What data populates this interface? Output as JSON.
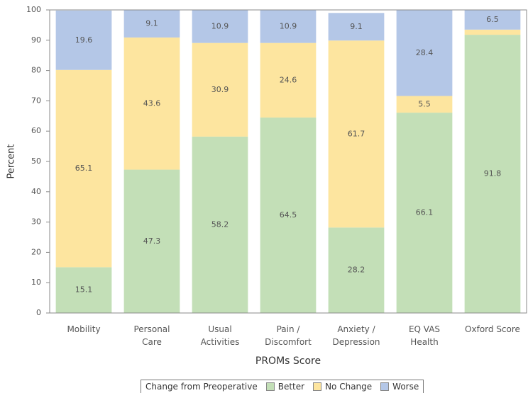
{
  "chart_data": {
    "type": "stacked_bar",
    "x_label": "PROMs Score",
    "y_label": "Percent",
    "categories": [
      "Mobility",
      "Personal Care",
      "Usual Activities",
      "Pain / Discomfort",
      "Anxiety / Depression",
      "EQ VAS Health",
      "Oxford Score"
    ],
    "series": [
      {
        "name": "Better",
        "color": "#c3dfb7",
        "values": [
          15.1,
          47.3,
          58.2,
          64.5,
          28.2,
          66.1,
          91.8
        ],
        "value_labels": [
          "15.1",
          "47.3",
          "58.2",
          "64.5",
          "28.2",
          "66.1",
          "91.8"
        ]
      },
      {
        "name": "No Change",
        "color": "#fde59f",
        "values": [
          65.1,
          43.6,
          30.9,
          24.6,
          61.7,
          5.5,
          1.7
        ],
        "value_labels": [
          "65.1",
          "43.6",
          "30.9",
          "24.6",
          "61.7",
          "5.5",
          null
        ]
      },
      {
        "name": "Worse",
        "color": "#b4c7e7",
        "values": [
          19.6,
          9.1,
          10.9,
          10.9,
          9.1,
          28.4,
          6.5
        ],
        "value_labels": [
          "19.6",
          "9.1",
          "10.9",
          "10.9",
          "9.1",
          "28.4",
          "6.5"
        ]
      }
    ],
    "legend_title": "Change from Preoperative",
    "ylim": [
      0,
      100
    ],
    "yticks": [
      0,
      10,
      20,
      30,
      40,
      50,
      60,
      70,
      80,
      90,
      100
    ]
  }
}
